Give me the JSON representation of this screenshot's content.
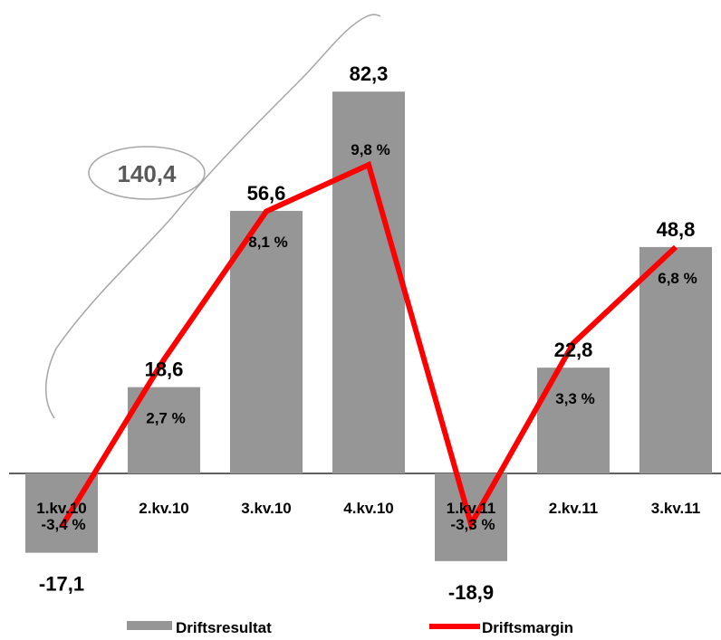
{
  "chart_data": {
    "type": "bar",
    "categories": [
      "1.kv.10",
      "2.kv.10",
      "3.kv.10",
      "4.kv.10",
      "1.kv.11",
      "2.kv.11",
      "3.kv.11"
    ],
    "series": [
      {
        "name": "Driftsresultat",
        "type": "bar",
        "values": [
          -17.1,
          18.6,
          56.6,
          82.3,
          -18.9,
          22.8,
          48.8
        ],
        "labels": [
          "-17,1",
          "18,6",
          "56,6",
          "82,3",
          "-18,9",
          "22,8",
          "48,8"
        ],
        "color": "#969696"
      },
      {
        "name": "Driftsmargin",
        "type": "line",
        "values": [
          -3.4,
          2.7,
          8.1,
          9.8,
          -3.3,
          3.3,
          6.8
        ],
        "labels": [
          "-3,4 %",
          "2,7 %",
          "8,1 %",
          "9,8 %",
          "-3,3 %",
          "3,3 %",
          "6,8 %"
        ],
        "color": "#ff0000"
      }
    ],
    "annotation": {
      "text": "140,4"
    },
    "legend": {
      "position": "bottom"
    },
    "grid": false
  }
}
